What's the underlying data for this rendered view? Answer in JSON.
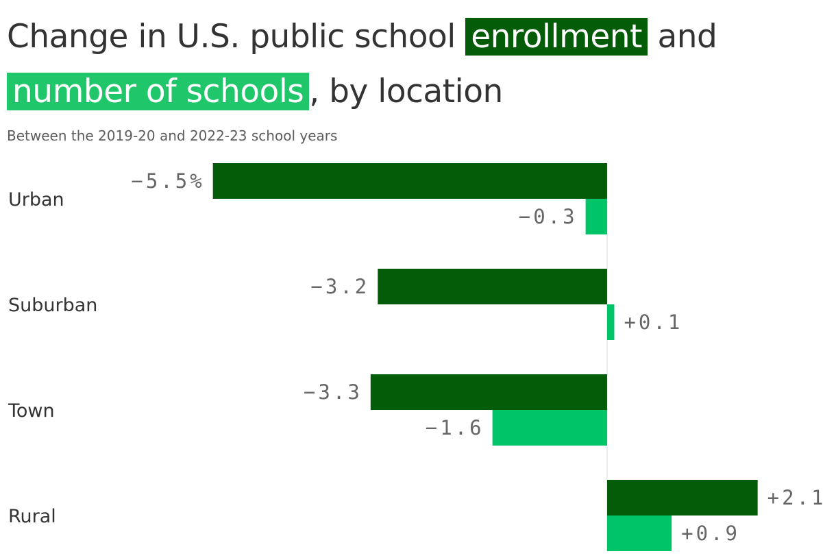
{
  "title": {
    "before": "Change in U.S. public school ",
    "series1": "enrollment",
    "middle": " and ",
    "series2": "number of schools",
    "after": ", by location"
  },
  "subtitle": "Between the 2019-20 and 2022-23 school years",
  "colors": {
    "enrollment": "#045b08",
    "schools": "#00c468",
    "zero_line": "#d9d9d9"
  },
  "chart_data": {
    "type": "bar",
    "orientation": "horizontal",
    "categories": [
      "Urban",
      "Suburban",
      "Town",
      "Rural"
    ],
    "series": [
      {
        "name": "enrollment",
        "values": [
          -5.5,
          -3.2,
          -3.3,
          2.1
        ],
        "labels": [
          "−5.5%",
          "−3.2",
          "−3.3",
          "+2.1"
        ]
      },
      {
        "name": "number of schools",
        "values": [
          -0.3,
          0.1,
          -1.6,
          0.9
        ],
        "labels": [
          "−0.3",
          "+0.1",
          "−1.6",
          "+0.9"
        ]
      }
    ],
    "xlim": [
      -5.5,
      3.2
    ]
  }
}
